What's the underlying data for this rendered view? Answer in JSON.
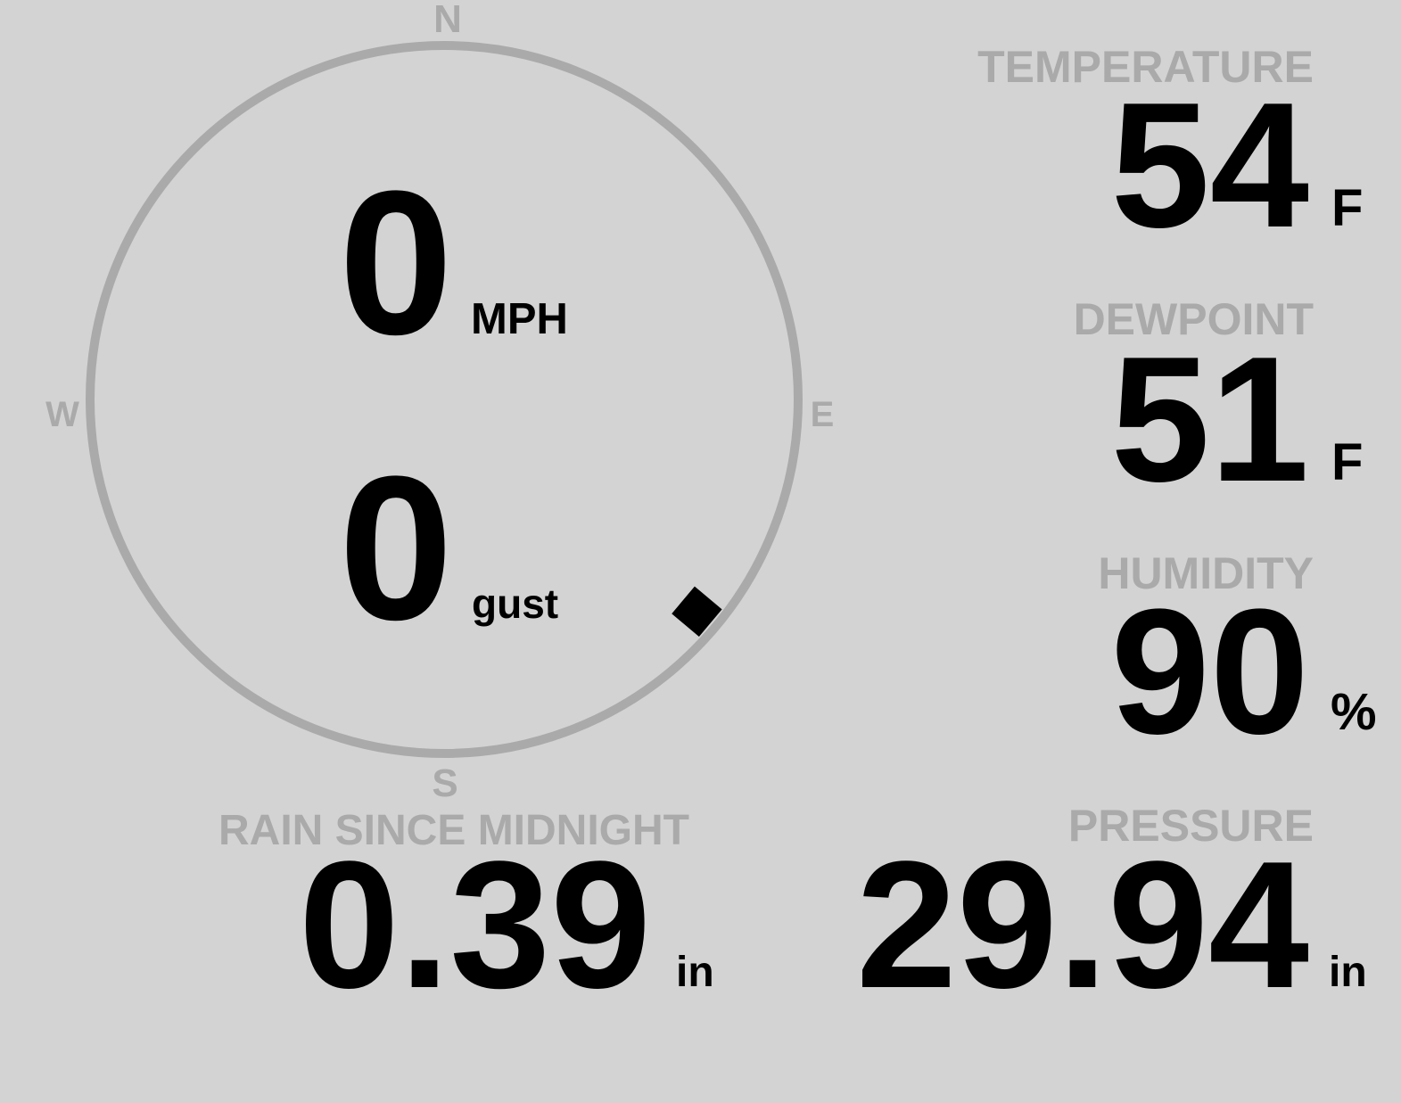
{
  "wind": {
    "speed": "0",
    "speed_unit": "MPH",
    "gust": "0",
    "gust_unit": "gust",
    "direction_deg": 130,
    "compass": {
      "north": "N",
      "south": "S",
      "east": "E",
      "west": "W"
    }
  },
  "temperature": {
    "label": "TEMPERATURE",
    "value": "54",
    "unit": "F"
  },
  "dewpoint": {
    "label": "DEWPOINT",
    "value": "51",
    "unit": "F"
  },
  "humidity": {
    "label": "HUMIDITY",
    "value": "90",
    "unit": "%"
  },
  "rain": {
    "label": "RAIN SINCE MIDNIGHT",
    "value": "0.39",
    "unit": "in"
  },
  "pressure": {
    "label": "PRESSURE",
    "value": "29.94",
    "unit": "in"
  },
  "colors": {
    "background": "#d3d3d3",
    "muted": "#aaaaaa",
    "text": "#000000"
  }
}
